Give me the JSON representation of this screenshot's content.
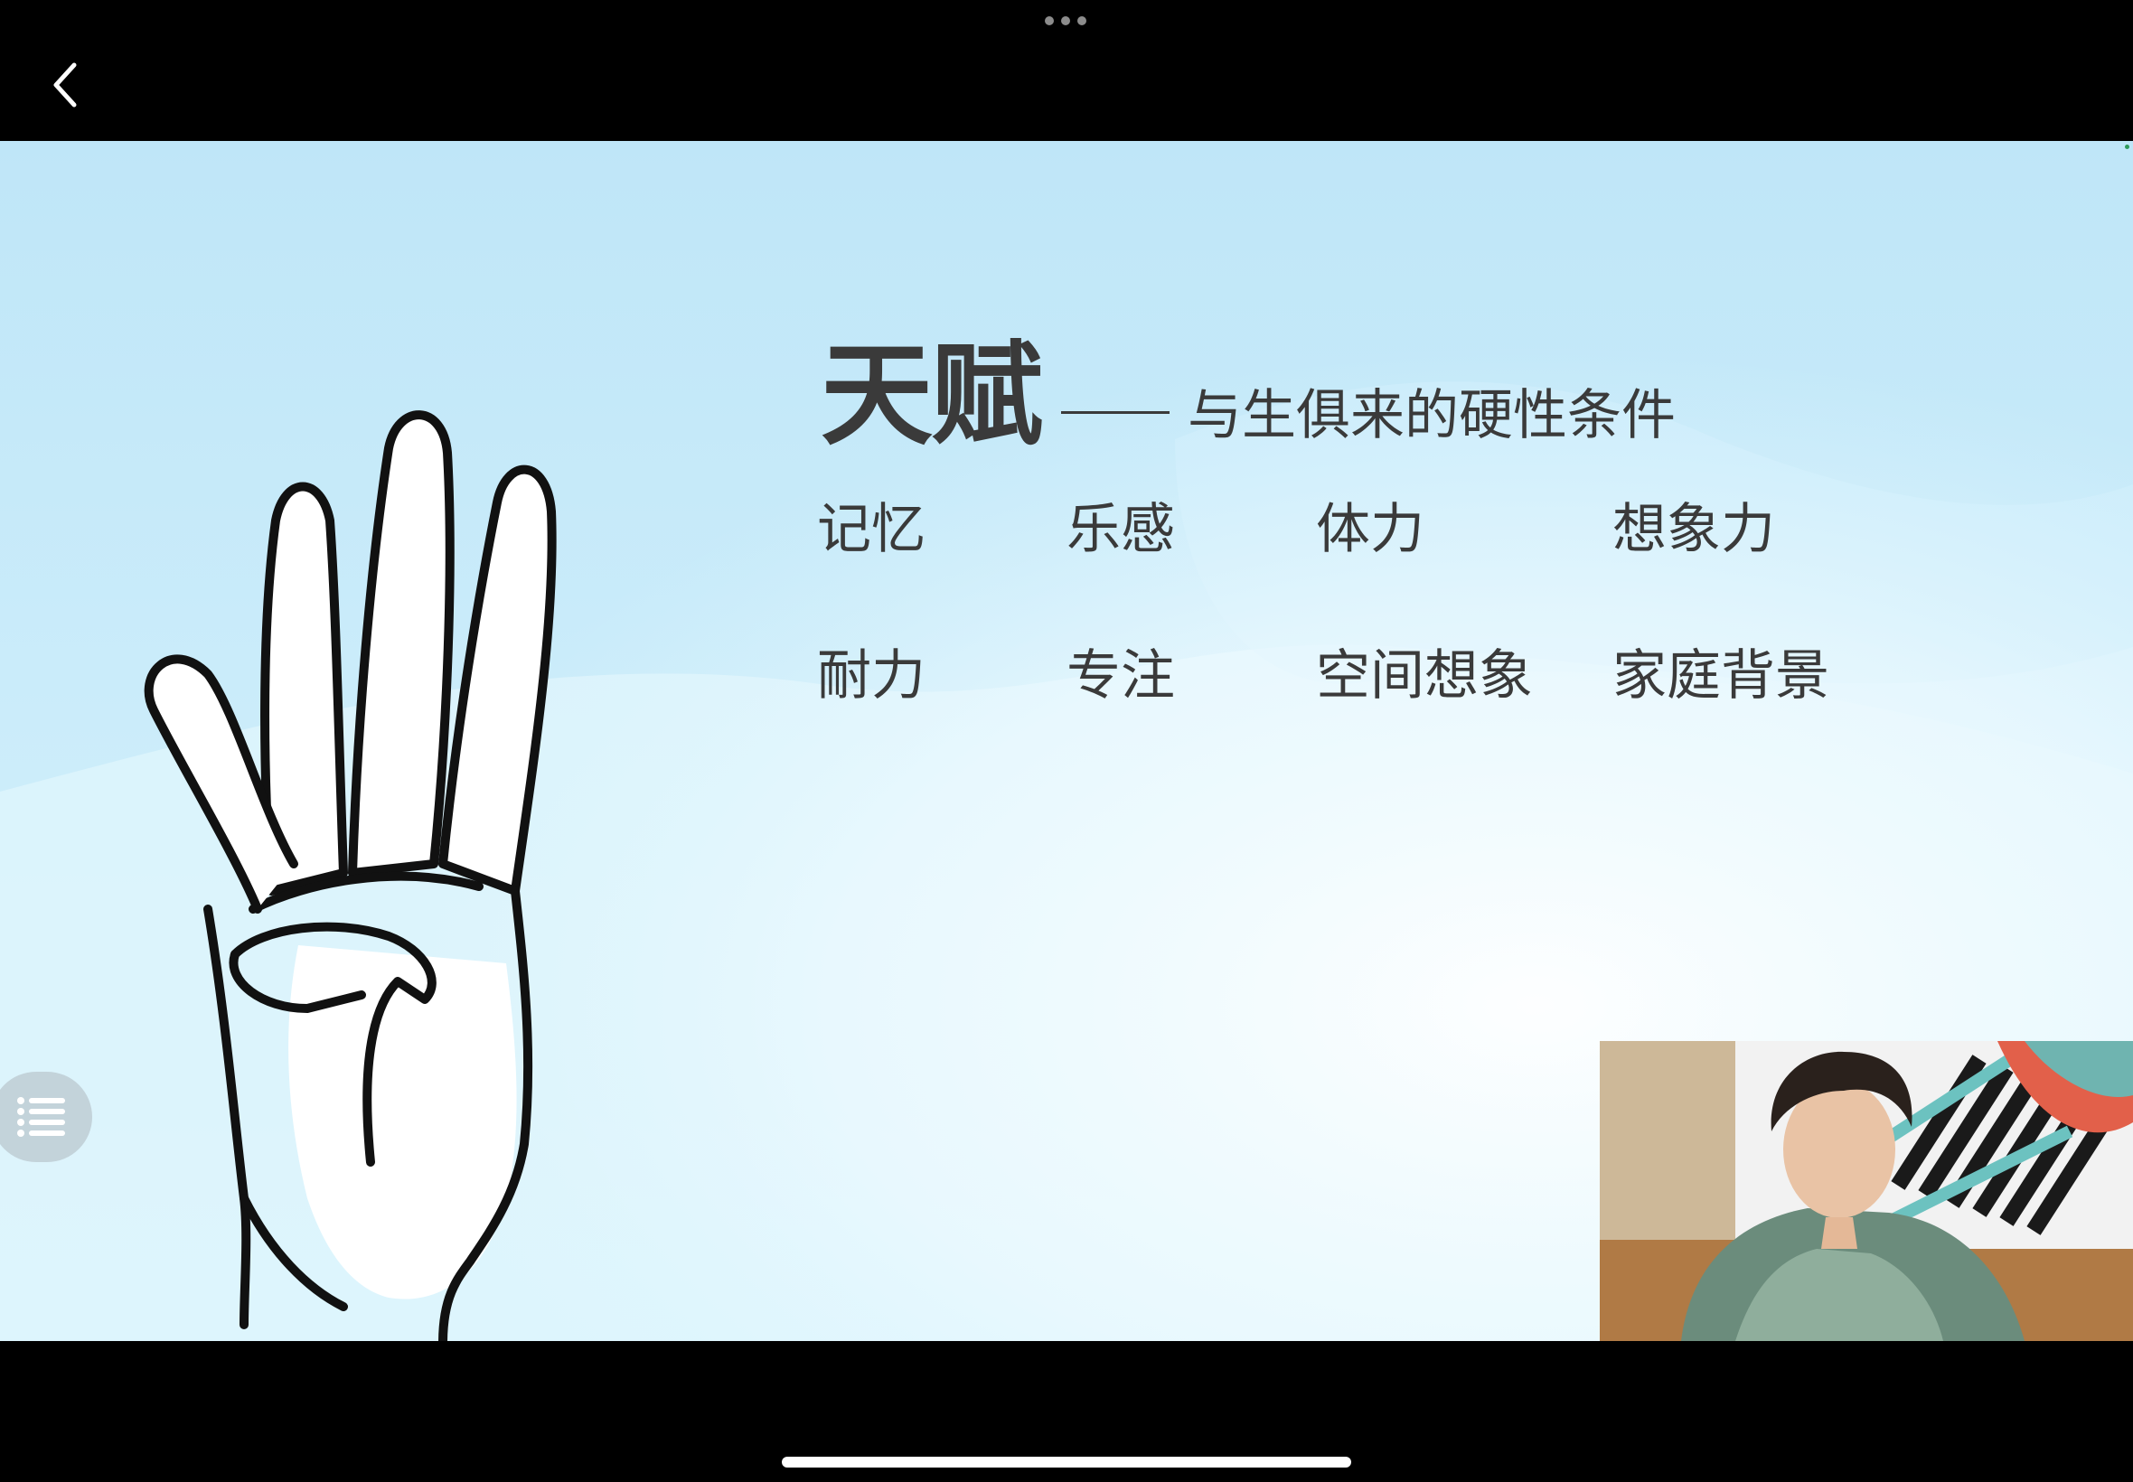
{
  "toolbar": {
    "more_icon": "ellipsis-icon",
    "back_icon": "chevron-left-icon"
  },
  "slide": {
    "title": "天赋",
    "subtitle": "与生俱来的硬性条件",
    "hand_icon": "four-fingers-hand-icon",
    "talents": [
      {
        "label": "记忆"
      },
      {
        "label": "乐感"
      },
      {
        "label": "体力"
      },
      {
        "label": "想象力"
      },
      {
        "label": "耐力"
      },
      {
        "label": "专注"
      },
      {
        "label": "空间想象"
      },
      {
        "label": "家庭背景"
      }
    ]
  },
  "controls": {
    "menu_icon": "list-icon",
    "video_label": "presenter-camera-feed"
  },
  "colors": {
    "text": "#3a3a3a",
    "slide_bg": "#d6f1fb",
    "frame": "#000000"
  }
}
